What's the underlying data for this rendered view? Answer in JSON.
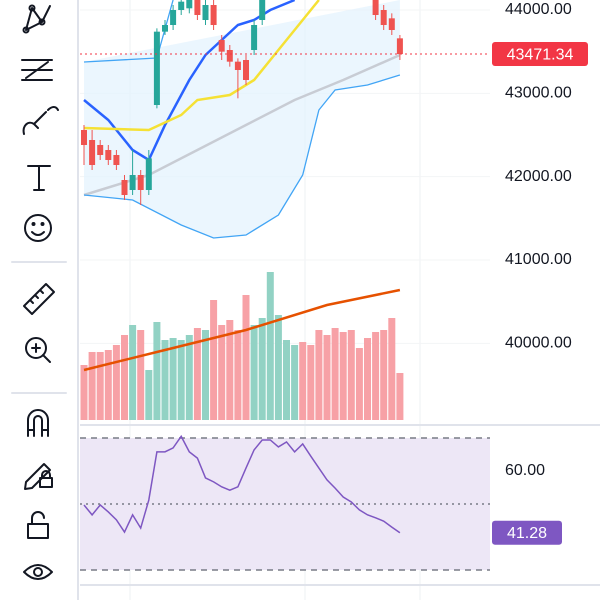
{
  "chart_data": [
    {
      "type": "candlestick",
      "open": [
        42560,
        42440,
        42380,
        42320,
        42260,
        41960,
        41840,
        42020,
        41840,
        42860,
        43740,
        43820,
        44000,
        44020,
        44120,
        43880,
        44060,
        43640,
        43520,
        43380,
        43400,
        43520,
        43880,
        null,
        null,
        null,
        null,
        null,
        null,
        null,
        null,
        null,
        null,
        null,
        null,
        null,
        44120,
        44000,
        43900,
        43660
      ],
      "close": [
        42380,
        42140,
        42260,
        42200,
        42140,
        41780,
        42020,
        41840,
        42220,
        43740,
        43820,
        44000,
        44100,
        44120,
        43940,
        44060,
        43820,
        43500,
        43380,
        43280,
        43160,
        43820,
        44120,
        null,
        null,
        null,
        null,
        null,
        null,
        null,
        null,
        null,
        null,
        null,
        null,
        null,
        43940,
        43820,
        43760,
        43471.34
      ],
      "high": [
        42620,
        42560,
        42440,
        42380,
        42320,
        42020,
        42320,
        42080,
        42320,
        43780,
        43880,
        44060,
        44120,
        44120,
        44120,
        44120,
        44120,
        43700,
        43580,
        43420,
        43460,
        43880,
        44120,
        null,
        null,
        null,
        null,
        null,
        null,
        null,
        null,
        null,
        null,
        null,
        null,
        null,
        44120,
        44060,
        43960,
        43700
      ],
      "low": [
        42140,
        42080,
        42200,
        42140,
        42080,
        41720,
        41780,
        41660,
        41780,
        42820,
        43700,
        43760,
        43940,
        43960,
        43880,
        43820,
        43760,
        43400,
        43320,
        42940,
        43100,
        43460,
        43820,
        null,
        null,
        null,
        null,
        null,
        null,
        null,
        null,
        null,
        null,
        null,
        null,
        null,
        43880,
        43760,
        43700,
        43400
      ],
      "up_color": "#26a69a",
      "down_color": "#ef5350",
      "ylim": [
        39080,
        44120
      ],
      "yticks": [
        {
          "value": 44000,
          "label": "44000.00"
        },
        {
          "value": 43000,
          "label": "43000.00"
        },
        {
          "value": 42000,
          "label": "42000.00"
        },
        {
          "value": 41000,
          "label": "41000.00"
        },
        {
          "value": 40000,
          "label": "40000.00"
        }
      ],
      "last_price": {
        "value": 43471.34,
        "label": "43471.34",
        "color": "#f23645"
      },
      "lines": [
        {
          "color": "#2962ff",
          "x": [
            0,
            3,
            6,
            8,
            10,
            13,
            15,
            17,
            19,
            21,
            23,
            26
          ],
          "values": [
            42920,
            42680,
            42320,
            42200,
            42620,
            43160,
            43460,
            43640,
            43820,
            43880,
            44000,
            44120
          ]
        },
        {
          "color": "#f5e135",
          "x": [
            0,
            8,
            12,
            14,
            18,
            21,
            24,
            27,
            29
          ],
          "values": [
            42584,
            42560,
            42740,
            42920,
            42980,
            43160,
            43520,
            43880,
            44120
          ]
        },
        {
          "color": "#c8ccd4",
          "x": [
            0,
            8,
            14,
            20,
            26,
            32,
            39
          ],
          "values": [
            41780,
            42020,
            42320,
            42620,
            42920,
            43160,
            43460
          ]
        },
        {
          "color": "#42a5f5",
          "x": [
            0,
            9,
            11
          ],
          "values": [
            43376,
            43424,
            44120
          ]
        },
        {
          "color": "#42a5f5",
          "x": [
            0,
            6,
            12,
            16,
            20,
            24,
            27,
            29,
            31,
            35,
            39
          ],
          "values": [
            41780,
            41720,
            41420,
            41264,
            41300,
            41540,
            42020,
            42800,
            43040,
            43100,
            43220
          ]
        }
      ]
    },
    {
      "type": "bar",
      "values": [
        55,
        68,
        68,
        70,
        75,
        85,
        95,
        90,
        50,
        98,
        80,
        82,
        80,
        85,
        92,
        90,
        120,
        95,
        100,
        90,
        125,
        95,
        102,
        148,
        105,
        80,
        75,
        78,
        75,
        90,
        85,
        92,
        88,
        90,
        72,
        82,
        88,
        90,
        102,
        47
      ],
      "colors": [
        "#f7a1a6",
        "#f7a1a6",
        "#f7a1a6",
        "#f7a1a6",
        "#f7a1a6",
        "#f7a1a6",
        "#92d2c4",
        "#f7a1a6",
        "#92d2c4",
        "#92d2c4",
        "#92d2c4",
        "#92d2c4",
        "#92d2c4",
        "#92d2c4",
        "#f7a1a6",
        "#92d2c4",
        "#f7a1a6",
        "#f7a1a6",
        "#f7a1a6",
        "#f7a1a6",
        "#f7a1a6",
        "#92d2c4",
        "#92d2c4",
        "#92d2c4",
        "#92d2c4",
        "#92d2c4",
        "#92d2c4",
        "#f7a1a6",
        "#f7a1a6",
        "#f7a1a6",
        "#f7a1a6",
        "#f7a1a6",
        "#f7a1a6",
        "#f7a1a6",
        "#f7a1a6",
        "#f7a1a6",
        "#f7a1a6",
        "#f7a1a6",
        "#f7a1a6",
        "#f7a1a6"
      ],
      "ylim": [
        0,
        160
      ],
      "ma": {
        "color": "#e65100",
        "x": [
          0,
          10,
          20,
          30,
          39
        ],
        "values": [
          50,
          70,
          90,
          115,
          130
        ]
      }
    },
    {
      "type": "line",
      "values": [
        49.7,
        46.7,
        49.7,
        47.6,
        45.2,
        41.5,
        46.7,
        42.7,
        51.2,
        65.8,
        65.8,
        67.0,
        70.5,
        65.8,
        63.9,
        57.9,
        56.7,
        55.2,
        54.2,
        55.2,
        60.9,
        66.4,
        69.4,
        69.4,
        67.3,
        68.8,
        65.8,
        68.2,
        64.5,
        60.9,
        57.3,
        54.8,
        52.1,
        50.6,
        48.2,
        46.7,
        45.8,
        44.8,
        43.0,
        41.28
      ],
      "color": "#7e57c2",
      "ylim": [
        25.45,
        73.94
      ],
      "yticks": [
        {
          "value": 60,
          "label": "60.00"
        }
      ],
      "bands": [
        70,
        50,
        30
      ],
      "last_label": "41.28"
    }
  ]
}
